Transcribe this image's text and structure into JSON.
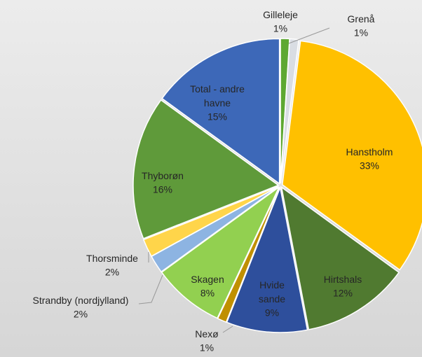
{
  "chart_data": {
    "type": "pie",
    "categories": [
      "Gilleleje",
      "Grenå",
      "Hanstholm",
      "Hirtshals",
      "Hvide sande",
      "Nexø",
      "Skagen",
      "Strandby (nordjylland)",
      "Thorsminde",
      "Thyborøn",
      "Total - andre havne"
    ],
    "values": [
      1,
      1,
      33,
      12,
      9,
      1,
      8,
      2,
      2,
      16,
      15
    ],
    "value_labels": [
      "1%",
      "1%",
      "33%",
      "12%",
      "9%",
      "1%",
      "8%",
      "2%",
      "2%",
      "16%",
      "15%"
    ],
    "colors": [
      "#5ea832",
      "#d9dde3",
      "#ffc000",
      "#507a30",
      "#2e4f9c",
      "#c09000",
      "#92d050",
      "#8db4e2",
      "#ffd54a",
      "#5f9a3a",
      "#3d68b8"
    ]
  }
}
